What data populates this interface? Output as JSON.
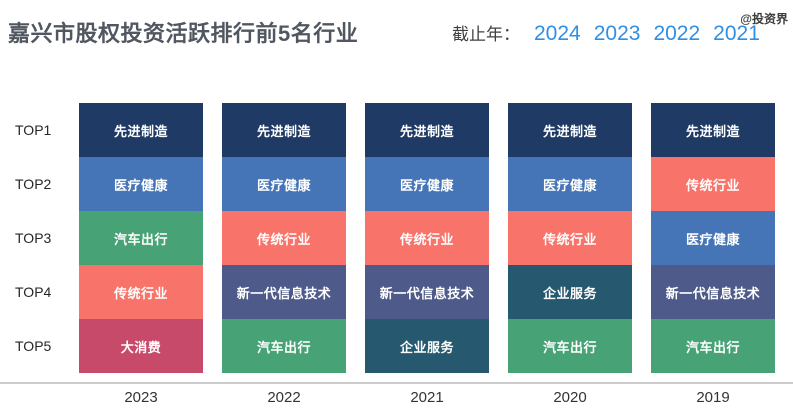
{
  "header": {
    "title": "嘉兴市股权投资活跃排行前5名行业",
    "filter_label": "截止年：",
    "filter_years": [
      "2024",
      "2023",
      "2022",
      "2021"
    ],
    "filter_year_color": "#2f8fe4",
    "watermark": "@投资界"
  },
  "chart_data": {
    "type": "table",
    "title": "嘉兴市股权投资活跃排行前5名行业",
    "row_labels": [
      "TOP1",
      "TOP2",
      "TOP3",
      "TOP4",
      "TOP5"
    ],
    "categories": [
      "2023",
      "2022",
      "2021",
      "2020",
      "2019"
    ],
    "columns": [
      {
        "year": "2023",
        "ranks": [
          "先进制造",
          "医疗健康",
          "汽车出行",
          "传统行业",
          "大消费"
        ]
      },
      {
        "year": "2022",
        "ranks": [
          "先进制造",
          "医疗健康",
          "传统行业",
          "新一代信息技术",
          "汽车出行"
        ]
      },
      {
        "year": "2021",
        "ranks": [
          "先进制造",
          "医疗健康",
          "传统行业",
          "新一代信息技术",
          "企业服务"
        ]
      },
      {
        "year": "2020",
        "ranks": [
          "先进制造",
          "医疗健康",
          "传统行业",
          "企业服务",
          "汽车出行"
        ]
      },
      {
        "year": "2019",
        "ranks": [
          "先进制造",
          "传统行业",
          "医疗健康",
          "新一代信息技术",
          "汽车出行"
        ]
      }
    ],
    "industry_colors": {
      "先进制造": "#1f3a64",
      "医疗健康": "#4574b7",
      "汽车出行": "#47a376",
      "传统行业": "#f8746a",
      "大消费": "#c84a6b",
      "新一代信息技术": "#4d5a8a",
      "企业服务": "#26586f"
    },
    "legend_position": "none",
    "grid": false
  }
}
